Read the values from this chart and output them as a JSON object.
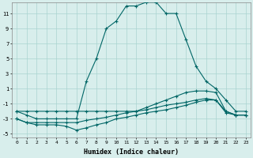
{
  "xlabel": "Humidex (Indice chaleur)",
  "bg_color": "#d8eeec",
  "line_color": "#006666",
  "grid_color": "#aad4d0",
  "xlim": [
    -0.5,
    23.5
  ],
  "ylim": [
    -5.5,
    12.5
  ],
  "yticks": [
    -5,
    -3,
    -1,
    1,
    3,
    5,
    7,
    9,
    11
  ],
  "xticks": [
    0,
    1,
    2,
    3,
    4,
    5,
    6,
    7,
    8,
    9,
    10,
    11,
    12,
    13,
    14,
    15,
    16,
    17,
    18,
    19,
    20,
    21,
    22,
    23
  ],
  "humidex_main": [
    -2,
    -2.5,
    -3,
    -3,
    -3,
    -3,
    -3,
    2,
    5,
    9,
    10,
    12,
    12,
    12.5,
    12.5,
    11,
    11,
    7.5,
    4,
    2,
    1,
    -0.5,
    -2,
    -2
  ],
  "line_diag": [
    -2,
    -2,
    -2,
    -2,
    -2,
    -2,
    -2,
    -2,
    -2,
    -2,
    -2,
    -2,
    -2,
    -1.5,
    -1,
    -0.5,
    0,
    0.5,
    0.7,
    0.7,
    0.5,
    -2,
    -2.5,
    -2.5
  ],
  "line_mid1": [
    -3,
    -3.5,
    -3.5,
    -3.5,
    -3.5,
    -3.5,
    -3.5,
    -3.2,
    -3,
    -2.8,
    -2.5,
    -2.2,
    -2,
    -1.8,
    -1.5,
    -1.2,
    -1,
    -0.8,
    -0.5,
    -0.3,
    -0.5,
    -2,
    -2.5,
    -2.5
  ],
  "line_mid2": [
    -3,
    -3.5,
    -3.8,
    -3.8,
    -3.8,
    -4,
    -4.5,
    -4.2,
    -3.8,
    -3.5,
    -3,
    -2.8,
    -2.5,
    -2.2,
    -2,
    -1.8,
    -1.5,
    -1.2,
    -0.8,
    -0.5,
    -0.5,
    -2.2,
    -2.5,
    -2.5
  ]
}
